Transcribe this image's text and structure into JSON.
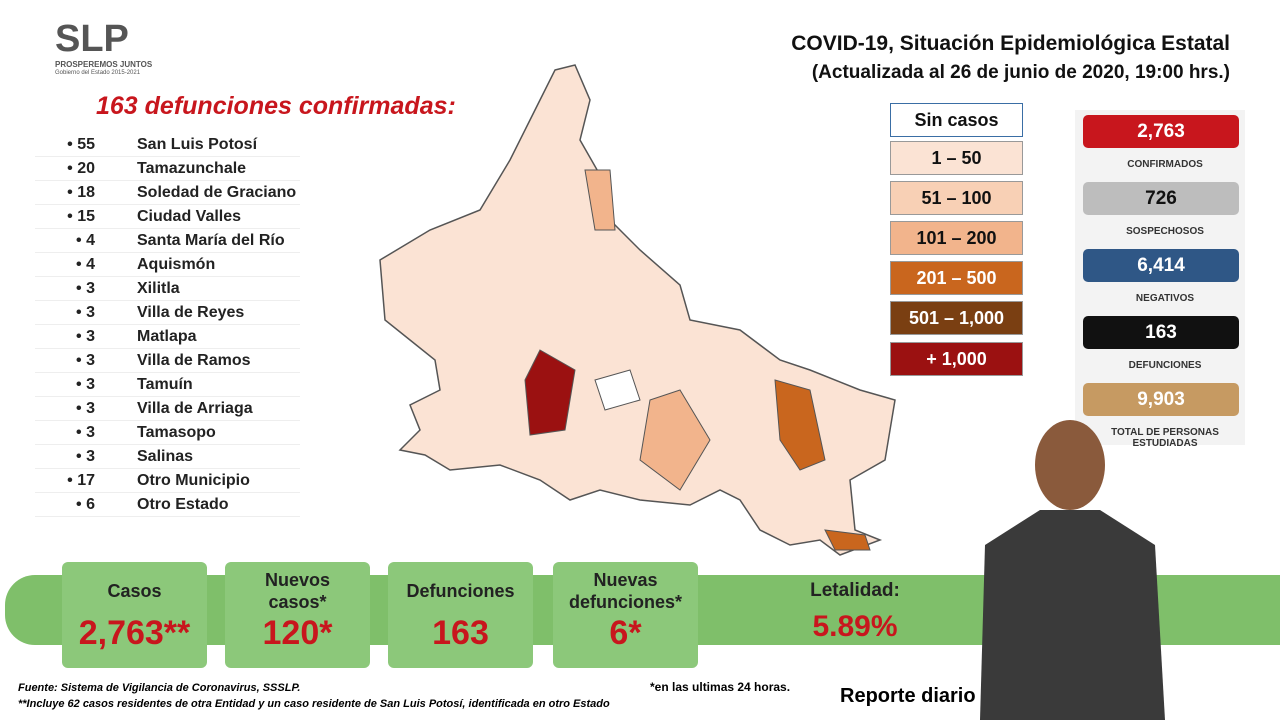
{
  "header": {
    "logo": "SLP",
    "logo_tagline": "PROSPEREMOS JUNTOS",
    "logo_government": "Gobierno del Estado 2015-2021",
    "title": "COVID-19, Situación Epidemiológica Estatal",
    "subtitle": "(Actualizada al 26 de junio de 2020, 19:00 hrs.)"
  },
  "deaths": {
    "heading": "163 defunciones confirmadas:",
    "rows": [
      {
        "count": 55,
        "name": "San Luis Potosí"
      },
      {
        "count": 20,
        "name": "Tamazunchale"
      },
      {
        "count": 18,
        "name": "Soledad de Graciano"
      },
      {
        "count": 15,
        "name": "Ciudad Valles"
      },
      {
        "count": 4,
        "name": "Santa María del Río"
      },
      {
        "count": 4,
        "name": "Aquismón"
      },
      {
        "count": 3,
        "name": "Xilitla"
      },
      {
        "count": 3,
        "name": "Villa de Reyes"
      },
      {
        "count": 3,
        "name": "Matlapa"
      },
      {
        "count": 3,
        "name": "Villa de Ramos"
      },
      {
        "count": 3,
        "name": "Tamuín"
      },
      {
        "count": 3,
        "name": "Villa de Arriaga"
      },
      {
        "count": 3,
        "name": "Tamasopo"
      },
      {
        "count": 3,
        "name": "Salinas"
      },
      {
        "count": 17,
        "name": "Otro Municipio"
      },
      {
        "count": 6,
        "name": "Otro Estado"
      }
    ]
  },
  "legend": [
    {
      "label": "Sin casos",
      "color": "#ffffff"
    },
    {
      "label": "1 – 50",
      "color": "#fbe3d4"
    },
    {
      "label": "51 – 100",
      "color": "#f8d0b5"
    },
    {
      "label": "101 – 200",
      "color": "#f2b48c"
    },
    {
      "label": "201 – 500",
      "color": "#c9661e"
    },
    {
      "label": "501 – 1,000",
      "color": "#7a3f12"
    },
    {
      "label": "+ 1,000",
      "color": "#9b1111"
    }
  ],
  "stats": [
    {
      "value": "2,763",
      "label": "CONFIRMADOS",
      "color": "#c8161d"
    },
    {
      "value": "726",
      "label": "SOSPECHOSOS",
      "color": "#bdbdbd"
    },
    {
      "value": "6,414",
      "label": "NEGATIVOS",
      "color": "#2f5786"
    },
    {
      "value": "163",
      "label": "DEFUNCIONES",
      "color": "#111111"
    },
    {
      "value": "9,903",
      "label": "TOTAL DE PERSONAS ESTUDIADAS",
      "color": "#c69a62"
    }
  ],
  "summary": [
    {
      "title": "Casos",
      "value": "2,763**"
    },
    {
      "title": "Nuevos casos*",
      "value": "120*"
    },
    {
      "title": "Defunciones",
      "value": "163"
    },
    {
      "title": "Nuevas defunciones*",
      "value": "6*"
    },
    {
      "title": "Letalidad:",
      "value": "5.89%"
    }
  ],
  "footer": {
    "source": "Fuente: Sistema de Vigilancia de Coronavirus, SSSLP.",
    "note": "**Incluye 62 casos residentes de otra Entidad y un caso residente de San Luis Potosí, identificada en otro Estado",
    "note_24h": "*en las ultimas 24 horas.",
    "report": "Reporte diario"
  }
}
